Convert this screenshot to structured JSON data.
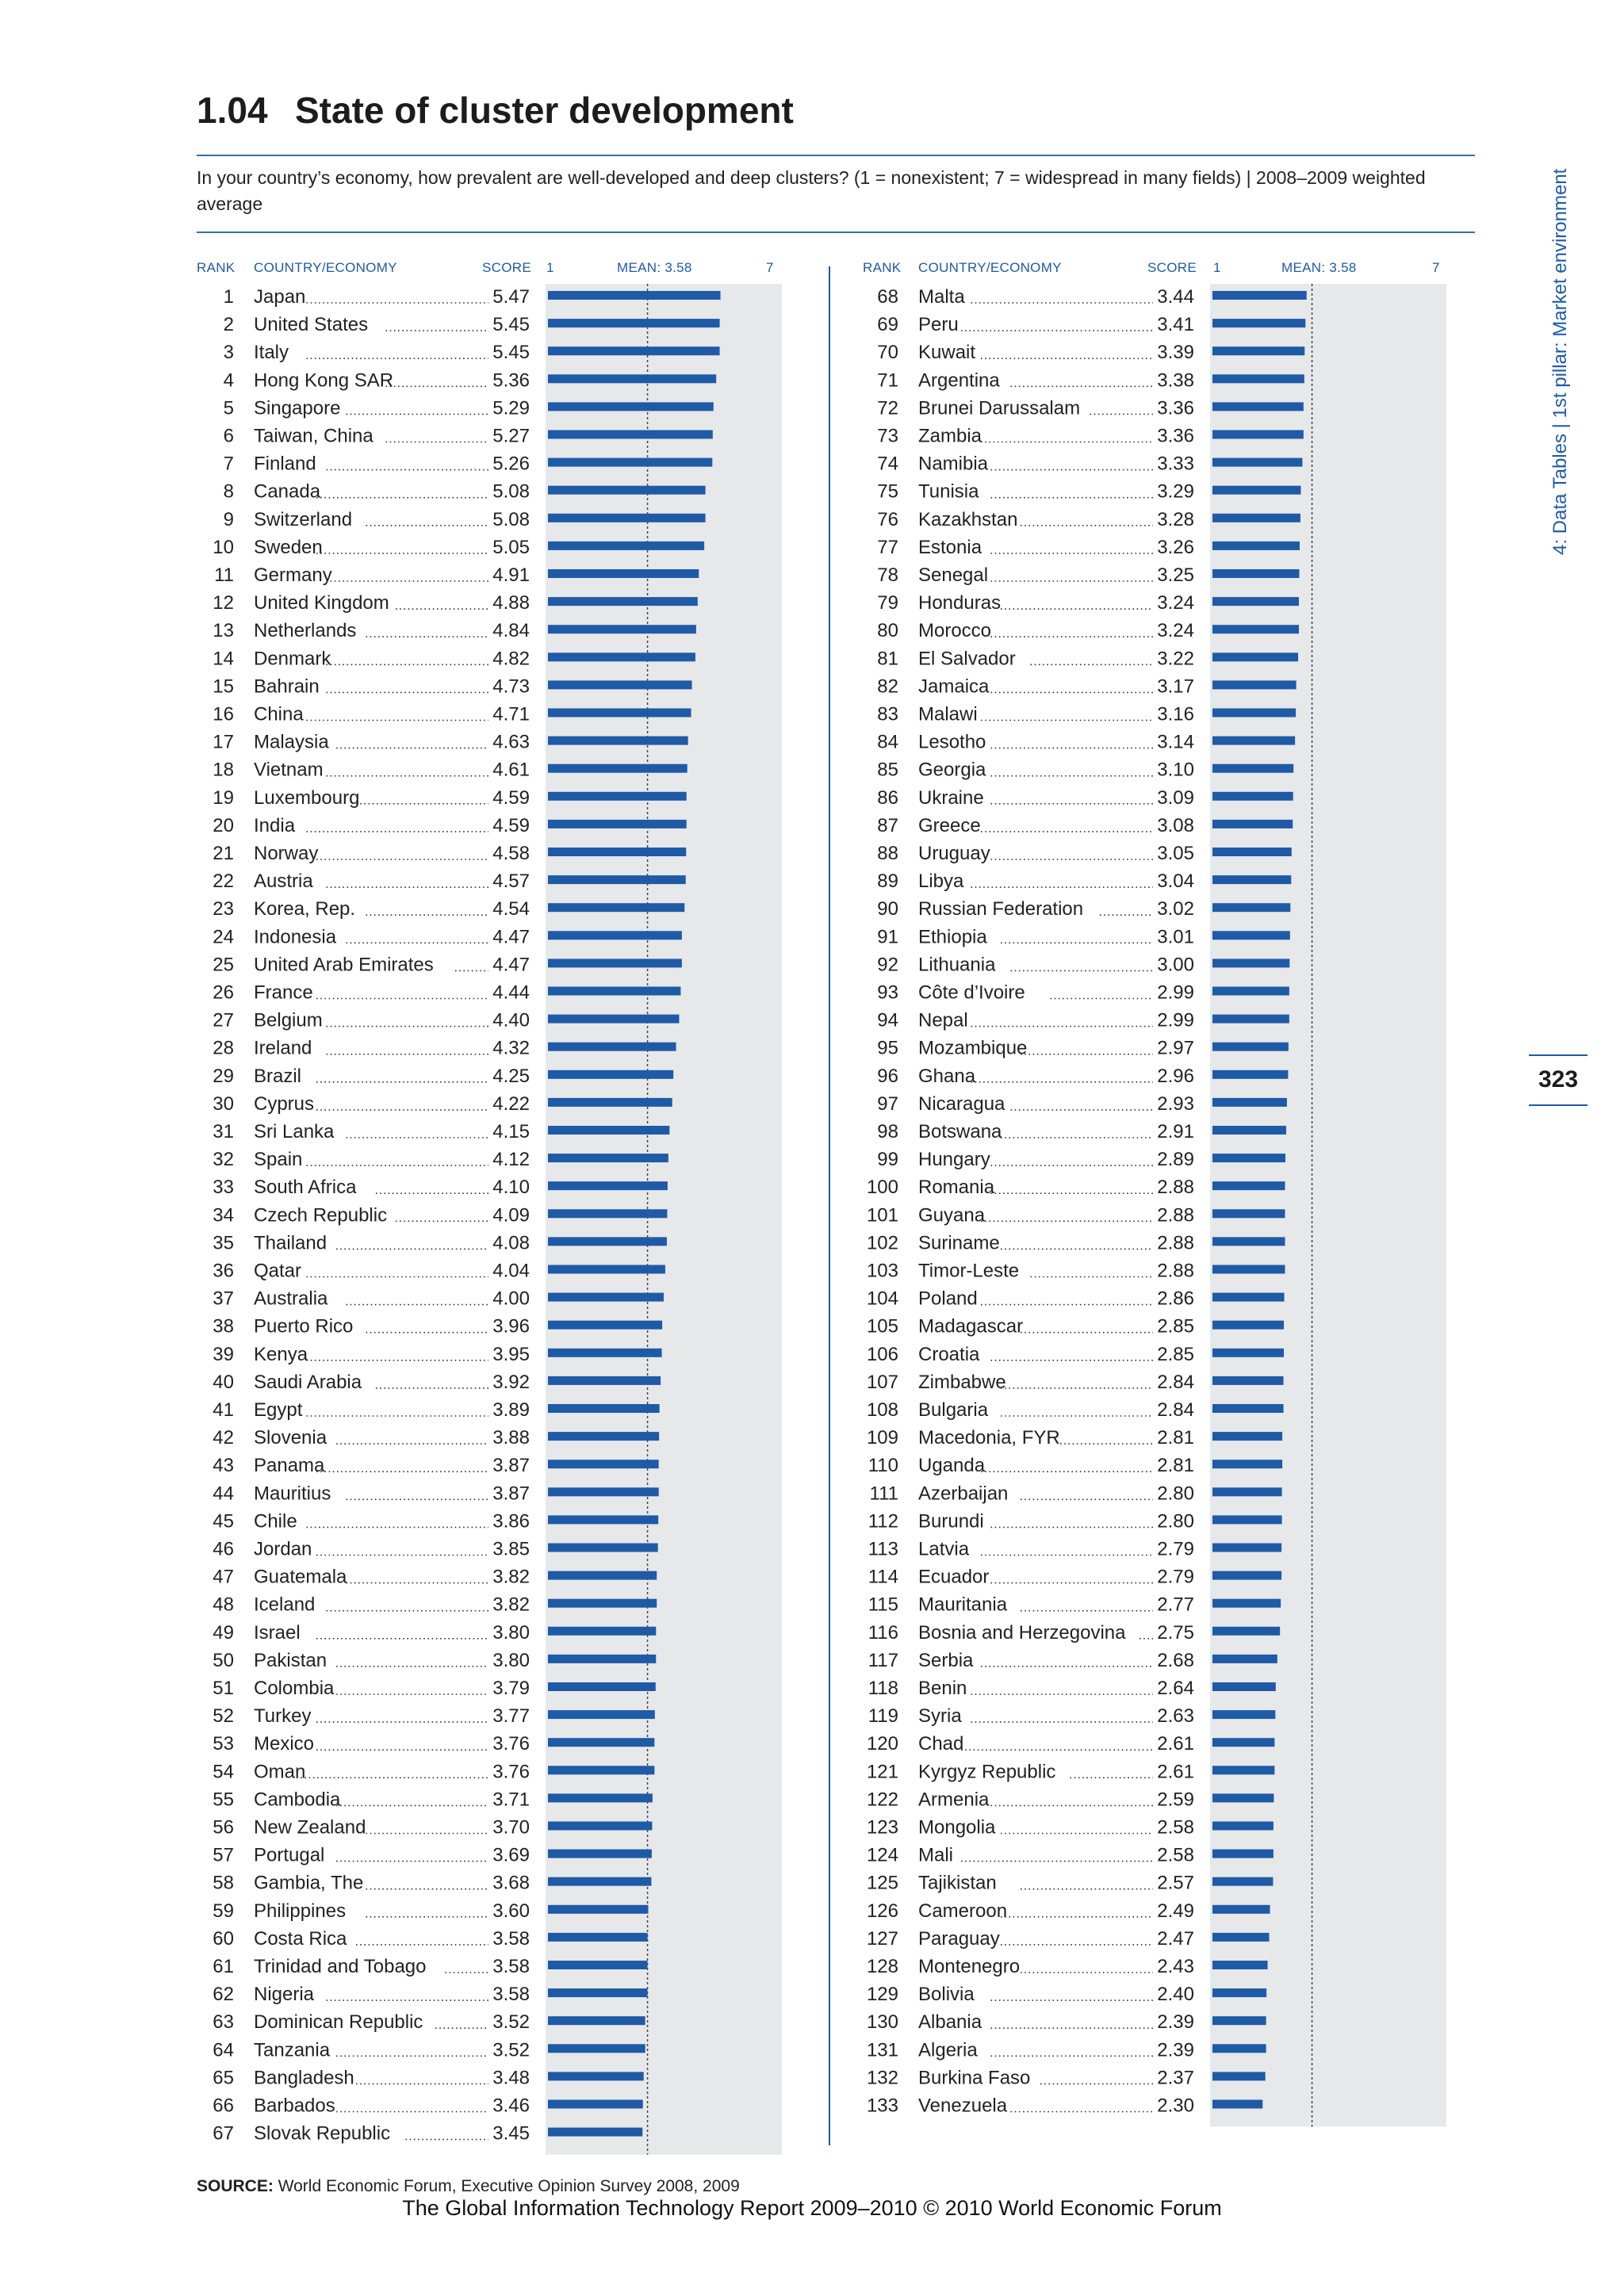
{
  "header": {
    "number": "1.04",
    "title": "State of cluster development",
    "question": "In your country’s economy, how prevalent are well-developed and deep clusters? (1 = nonexistent; 7 = widespread in many fields)  |  2008–2009 weighted average"
  },
  "columns": {
    "rank": "RANK",
    "country": "COUNTRY/ECONOMY",
    "score": "SCORE",
    "scale_min": "1",
    "mean_label": "MEAN: 3.58",
    "scale_max": "7"
  },
  "side_label": "4: Data Tables  |  1st pillar: Market environment",
  "page_number": "323",
  "source": {
    "label": "SOURCE:",
    "text": "World Economic Forum, Executive Opinion Survey 2008, 2009"
  },
  "footer": "The Global Information Technology Report 2009–2010 © 2010 World Economic Forum",
  "colors": {
    "bar": "#1f5aa6",
    "track": "#e6e8ea",
    "accent": "#1f5aa6"
  },
  "chart_data": {
    "type": "bar",
    "orientation": "horizontal",
    "xlim": [
      1,
      7
    ],
    "mean": 3.58,
    "rows": [
      {
        "rank": "1",
        "country": "Japan",
        "score": 5.47
      },
      {
        "rank": "2",
        "country": "United States",
        "score": 5.45
      },
      {
        "rank": "3",
        "country": "Italy",
        "score": 5.45
      },
      {
        "rank": "4",
        "country": "Hong Kong SAR",
        "score": 5.36
      },
      {
        "rank": "5",
        "country": "Singapore",
        "score": 5.29
      },
      {
        "rank": "6",
        "country": "Taiwan, China",
        "score": 5.27
      },
      {
        "rank": "7",
        "country": "Finland",
        "score": 5.26
      },
      {
        "rank": "8",
        "country": "Canada",
        "score": 5.08
      },
      {
        "rank": "9",
        "country": "Switzerland",
        "score": 5.08
      },
      {
        "rank": "10",
        "country": "Sweden",
        "score": 5.05
      },
      {
        "rank": "11",
        "country": "Germany",
        "score": 4.91
      },
      {
        "rank": "12",
        "country": "United Kingdom",
        "score": 4.88
      },
      {
        "rank": "13",
        "country": "Netherlands",
        "score": 4.84
      },
      {
        "rank": "14",
        "country": "Denmark",
        "score": 4.82
      },
      {
        "rank": "15",
        "country": "Bahrain",
        "score": 4.73
      },
      {
        "rank": "16",
        "country": "China",
        "score": 4.71
      },
      {
        "rank": "17",
        "country": "Malaysia",
        "score": 4.63
      },
      {
        "rank": "18",
        "country": "Vietnam",
        "score": 4.61
      },
      {
        "rank": "19",
        "country": "Luxembourg",
        "score": 4.59
      },
      {
        "rank": "20",
        "country": "India",
        "score": 4.59
      },
      {
        "rank": "21",
        "country": "Norway",
        "score": 4.58
      },
      {
        "rank": "22",
        "country": "Austria",
        "score": 4.57
      },
      {
        "rank": "23",
        "country": "Korea, Rep.",
        "score": 4.54
      },
      {
        "rank": "24",
        "country": "Indonesia",
        "score": 4.47
      },
      {
        "rank": "25",
        "country": "United Arab Emirates",
        "score": 4.47
      },
      {
        "rank": "26",
        "country": "France",
        "score": 4.44
      },
      {
        "rank": "27",
        "country": "Belgium",
        "score": 4.4
      },
      {
        "rank": "28",
        "country": "Ireland",
        "score": 4.32
      },
      {
        "rank": "29",
        "country": "Brazil",
        "score": 4.25
      },
      {
        "rank": "30",
        "country": "Cyprus",
        "score": 4.22
      },
      {
        "rank": "31",
        "country": "Sri Lanka",
        "score": 4.15
      },
      {
        "rank": "32",
        "country": "Spain",
        "score": 4.12
      },
      {
        "rank": "33",
        "country": "South Africa",
        "score": 4.1
      },
      {
        "rank": "34",
        "country": "Czech Republic",
        "score": 4.09
      },
      {
        "rank": "35",
        "country": "Thailand",
        "score": 4.08
      },
      {
        "rank": "36",
        "country": "Qatar",
        "score": 4.04
      },
      {
        "rank": "37",
        "country": "Australia",
        "score": 4.0
      },
      {
        "rank": "38",
        "country": "Puerto Rico",
        "score": 3.96
      },
      {
        "rank": "39",
        "country": "Kenya",
        "score": 3.95
      },
      {
        "rank": "40",
        "country": "Saudi Arabia",
        "score": 3.92
      },
      {
        "rank": "41",
        "country": "Egypt",
        "score": 3.89
      },
      {
        "rank": "42",
        "country": "Slovenia",
        "score": 3.88
      },
      {
        "rank": "43",
        "country": "Panama",
        "score": 3.87
      },
      {
        "rank": "44",
        "country": "Mauritius",
        "score": 3.87
      },
      {
        "rank": "45",
        "country": "Chile",
        "score": 3.86
      },
      {
        "rank": "46",
        "country": "Jordan",
        "score": 3.85
      },
      {
        "rank": "47",
        "country": "Guatemala",
        "score": 3.82
      },
      {
        "rank": "48",
        "country": "Iceland",
        "score": 3.82
      },
      {
        "rank": "49",
        "country": "Israel",
        "score": 3.8
      },
      {
        "rank": "50",
        "country": "Pakistan",
        "score": 3.8
      },
      {
        "rank": "51",
        "country": "Colombia",
        "score": 3.79
      },
      {
        "rank": "52",
        "country": "Turkey",
        "score": 3.77
      },
      {
        "rank": "53",
        "country": "Mexico",
        "score": 3.76
      },
      {
        "rank": "54",
        "country": "Oman",
        "score": 3.76
      },
      {
        "rank": "55",
        "country": "Cambodia",
        "score": 3.71
      },
      {
        "rank": "56",
        "country": "New Zealand",
        "score": 3.7
      },
      {
        "rank": "57",
        "country": "Portugal",
        "score": 3.69
      },
      {
        "rank": "58",
        "country": "Gambia, The",
        "score": 3.68
      },
      {
        "rank": "59",
        "country": "Philippines",
        "score": 3.6
      },
      {
        "rank": "60",
        "country": "Costa Rica",
        "score": 3.58
      },
      {
        "rank": "61",
        "country": "Trinidad and Tobago",
        "score": 3.58
      },
      {
        "rank": "62",
        "country": "Nigeria",
        "score": 3.58
      },
      {
        "rank": "63",
        "country": "Dominican Republic",
        "score": 3.52
      },
      {
        "rank": "64",
        "country": "Tanzania",
        "score": 3.52
      },
      {
        "rank": "65",
        "country": "Bangladesh",
        "score": 3.48
      },
      {
        "rank": "66",
        "country": "Barbados",
        "score": 3.46
      },
      {
        "rank": "67",
        "country": "Slovak Republic",
        "score": 3.45
      },
      {
        "rank": "68",
        "country": "Malta",
        "score": 3.44
      },
      {
        "rank": "69",
        "country": "Peru",
        "score": 3.41
      },
      {
        "rank": "70",
        "country": "Kuwait",
        "score": 3.39
      },
      {
        "rank": "71",
        "country": "Argentina",
        "score": 3.38
      },
      {
        "rank": "72",
        "country": "Brunei Darussalam",
        "score": 3.36
      },
      {
        "rank": "73",
        "country": "Zambia",
        "score": 3.36
      },
      {
        "rank": "74",
        "country": "Namibia",
        "score": 3.33
      },
      {
        "rank": "75",
        "country": "Tunisia",
        "score": 3.29
      },
      {
        "rank": "76",
        "country": "Kazakhstan",
        "score": 3.28
      },
      {
        "rank": "77",
        "country": "Estonia",
        "score": 3.26
      },
      {
        "rank": "78",
        "country": "Senegal",
        "score": 3.25
      },
      {
        "rank": "79",
        "country": "Honduras",
        "score": 3.24
      },
      {
        "rank": "80",
        "country": "Morocco",
        "score": 3.24
      },
      {
        "rank": "81",
        "country": "El Salvador",
        "score": 3.22
      },
      {
        "rank": "82",
        "country": "Jamaica",
        "score": 3.17
      },
      {
        "rank": "83",
        "country": "Malawi",
        "score": 3.16
      },
      {
        "rank": "84",
        "country": "Lesotho",
        "score": 3.14
      },
      {
        "rank": "85",
        "country": "Georgia",
        "score": 3.1
      },
      {
        "rank": "86",
        "country": "Ukraine",
        "score": 3.09
      },
      {
        "rank": "87",
        "country": "Greece",
        "score": 3.08
      },
      {
        "rank": "88",
        "country": "Uruguay",
        "score": 3.05
      },
      {
        "rank": "89",
        "country": "Libya",
        "score": 3.04
      },
      {
        "rank": "90",
        "country": "Russian Federation",
        "score": 3.02
      },
      {
        "rank": "91",
        "country": "Ethiopia",
        "score": 3.01
      },
      {
        "rank": "92",
        "country": "Lithuania",
        "score": 3.0
      },
      {
        "rank": "93",
        "country": "Côte d’Ivoire",
        "score": 2.99
      },
      {
        "rank": "94",
        "country": "Nepal",
        "score": 2.99
      },
      {
        "rank": "95",
        "country": "Mozambique",
        "score": 2.97
      },
      {
        "rank": "96",
        "country": "Ghana",
        "score": 2.96
      },
      {
        "rank": "97",
        "country": "Nicaragua",
        "score": 2.93
      },
      {
        "rank": "98",
        "country": "Botswana",
        "score": 2.91
      },
      {
        "rank": "99",
        "country": "Hungary",
        "score": 2.89
      },
      {
        "rank": "100",
        "country": "Romania",
        "score": 2.88
      },
      {
        "rank": "101",
        "country": "Guyana",
        "score": 2.88
      },
      {
        "rank": "102",
        "country": "Suriname",
        "score": 2.88
      },
      {
        "rank": "103",
        "country": "Timor-Leste",
        "score": 2.88
      },
      {
        "rank": "104",
        "country": "Poland",
        "score": 2.86
      },
      {
        "rank": "105",
        "country": "Madagascar",
        "score": 2.85
      },
      {
        "rank": "106",
        "country": "Croatia",
        "score": 2.85
      },
      {
        "rank": "107",
        "country": "Zimbabwe",
        "score": 2.84
      },
      {
        "rank": "108",
        "country": "Bulgaria",
        "score": 2.84
      },
      {
        "rank": "109",
        "country": "Macedonia, FYR",
        "score": 2.81
      },
      {
        "rank": "110",
        "country": "Uganda",
        "score": 2.81
      },
      {
        "rank": "111",
        "country": "Azerbaijan",
        "score": 2.8
      },
      {
        "rank": "112",
        "country": "Burundi",
        "score": 2.8
      },
      {
        "rank": "113",
        "country": "Latvia",
        "score": 2.79
      },
      {
        "rank": "114",
        "country": "Ecuador",
        "score": 2.79
      },
      {
        "rank": "115",
        "country": "Mauritania",
        "score": 2.77
      },
      {
        "rank": "116",
        "country": "Bosnia and Herzegovina",
        "score": 2.75
      },
      {
        "rank": "117",
        "country": "Serbia",
        "score": 2.68
      },
      {
        "rank": "118",
        "country": "Benin",
        "score": 2.64
      },
      {
        "rank": "119",
        "country": "Syria",
        "score": 2.63
      },
      {
        "rank": "120",
        "country": "Chad",
        "score": 2.61
      },
      {
        "rank": "121",
        "country": "Kyrgyz Republic",
        "score": 2.61
      },
      {
        "rank": "122",
        "country": "Armenia",
        "score": 2.59
      },
      {
        "rank": "123",
        "country": "Mongolia",
        "score": 2.58
      },
      {
        "rank": "124",
        "country": "Mali",
        "score": 2.58
      },
      {
        "rank": "125",
        "country": "Tajikistan",
        "score": 2.57
      },
      {
        "rank": "126",
        "country": "Cameroon",
        "score": 2.49
      },
      {
        "rank": "127",
        "country": "Paraguay",
        "score": 2.47
      },
      {
        "rank": "128",
        "country": "Montenegro",
        "score": 2.43
      },
      {
        "rank": "129",
        "country": "Bolivia",
        "score": 2.4
      },
      {
        "rank": "130",
        "country": "Albania",
        "score": 2.39
      },
      {
        "rank": "131",
        "country": "Algeria",
        "score": 2.39
      },
      {
        "rank": "132",
        "country": "Burkina Faso",
        "score": 2.37
      },
      {
        "rank": "133",
        "country": "Venezuela",
        "score": 2.3
      }
    ]
  }
}
